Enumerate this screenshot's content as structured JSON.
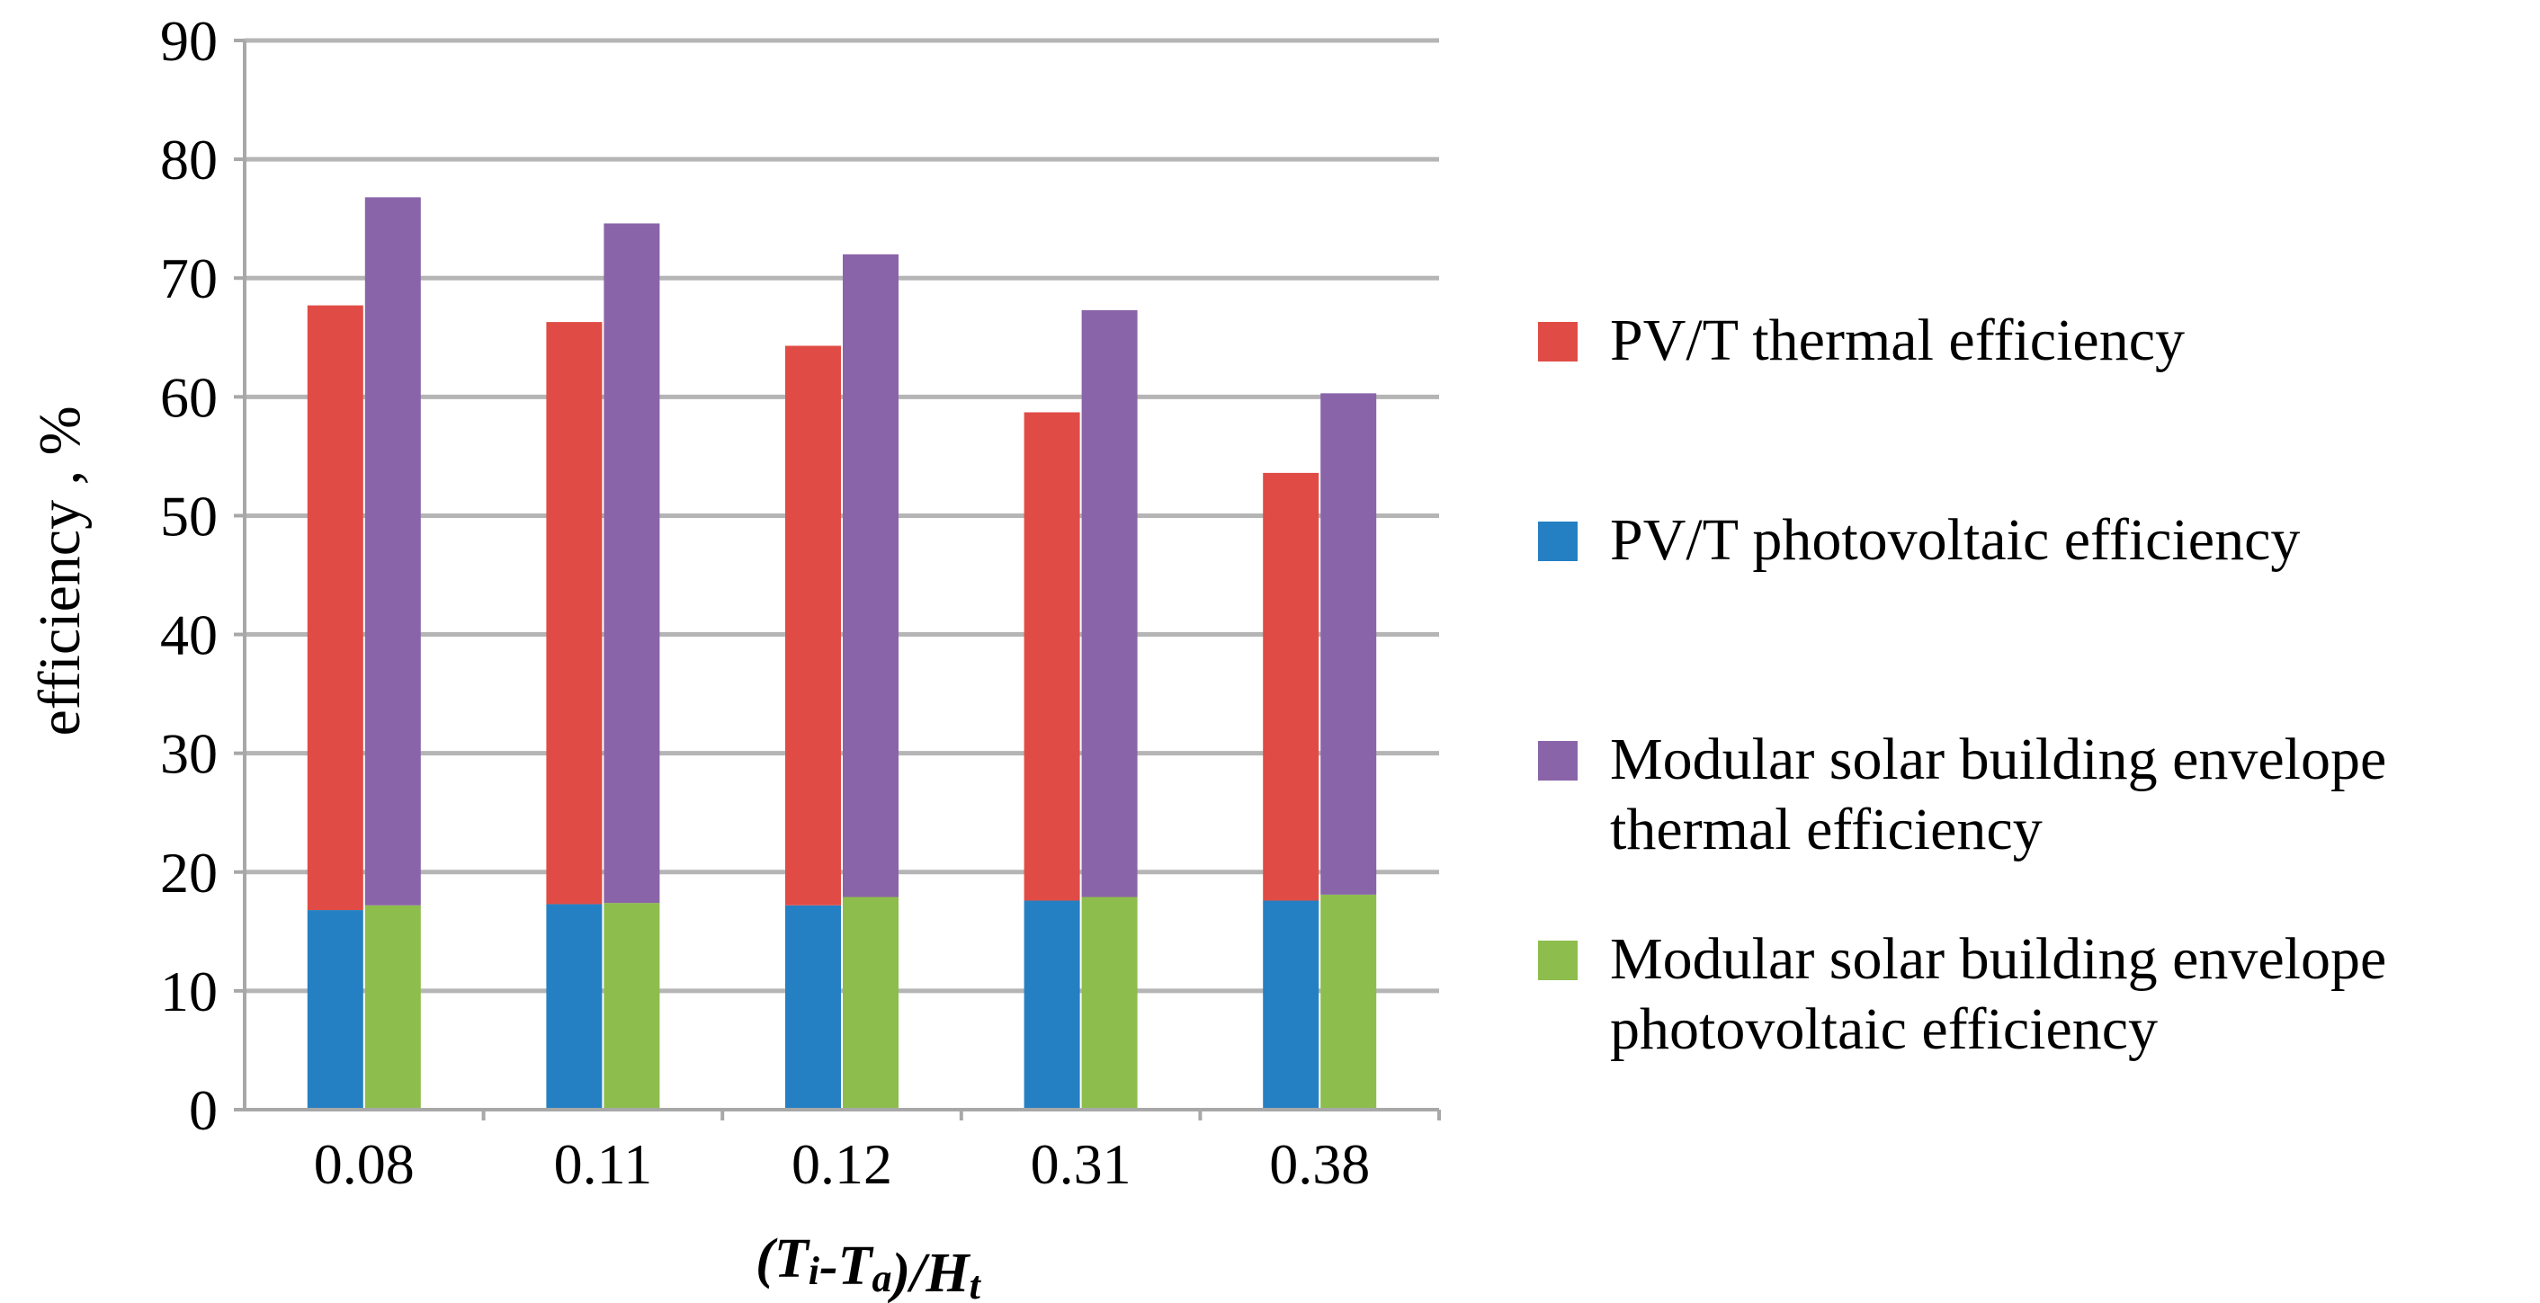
{
  "chart_data": {
    "type": "bar",
    "title": "",
    "xlabel": "(Ti-Ta)/Ht",
    "xlabel_parts": [
      {
        "text": "(T",
        "sub": false
      },
      {
        "text": "i",
        "sub": true
      },
      {
        "text": "-T",
        "sub": false
      },
      {
        "text": "a",
        "sub": true
      },
      {
        "text": ")/H",
        "sub": false
      },
      {
        "text": "t",
        "sub": true
      }
    ],
    "ylabel": "efficiency , %",
    "ylim": [
      0,
      90
    ],
    "yticks": [
      0,
      10,
      20,
      30,
      40,
      50,
      60,
      70,
      80,
      90
    ],
    "grid": true,
    "legend_position": "right",
    "categories": [
      "0.08",
      "0.11",
      "0.12",
      "0.31",
      "0.38"
    ],
    "stacks": [
      {
        "name": "PV/T",
        "segments": [
          {
            "name": "PV/T photovoltaic efficiency",
            "color": "#2580C3",
            "values": [
              16.8,
              17.3,
              17.2,
              17.6,
              17.6
            ]
          },
          {
            "name": "PV/T thermal efficiency",
            "color": "#E04C45",
            "values": [
              50.9,
              49.0,
              47.1,
              41.1,
              36.0
            ]
          }
        ]
      },
      {
        "name": "Modular solar building envelope",
        "segments": [
          {
            "name": "Modular solar building envelope photovoltaic efficiency",
            "color": "#8DBD4C",
            "values": [
              17.2,
              17.4,
              17.9,
              17.9,
              18.1
            ]
          },
          {
            "name": "Modular solar building envelope thermal efficiency",
            "color": "#8A64A9",
            "values": [
              59.6,
              57.2,
              54.1,
              49.4,
              42.2
            ]
          }
        ]
      }
    ],
    "totals": {
      "PV/T": [
        67.7,
        66.3,
        64.3,
        58.7,
        53.6
      ],
      "Modular solar building envelope": [
        76.8,
        74.6,
        72.0,
        67.3,
        60.3
      ]
    },
    "legend": [
      {
        "label": "PV/T thermal efficiency",
        "color": "#E04C45"
      },
      {
        "label": "PV/T photovoltaic efficiency",
        "color": "#2580C3"
      },
      {
        "label": "Modular solar building envelope\nthermal efficiency",
        "color": "#8A64A9"
      },
      {
        "label": "Modular solar building envelope\nphotovoltaic efficiency",
        "color": "#8DBD4C"
      }
    ]
  }
}
